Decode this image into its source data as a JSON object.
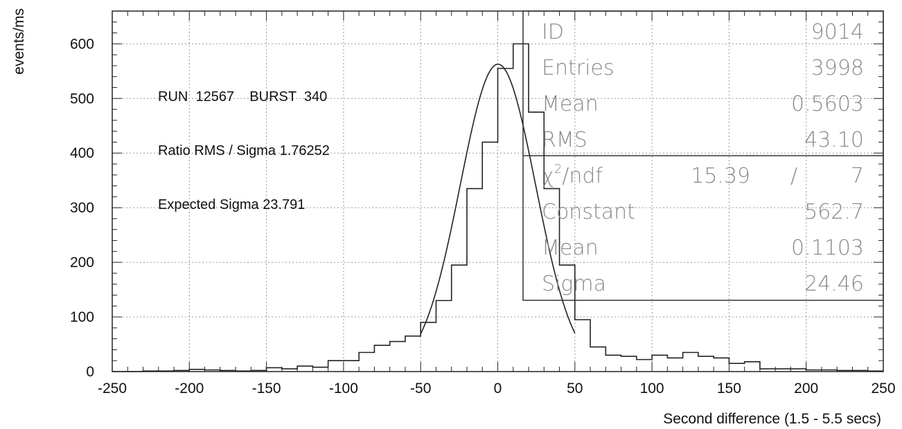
{
  "chart_data": {
    "type": "histogram",
    "title": "",
    "xlabel": "Second difference  (1.5 - 5.5 secs)",
    "ylabel": "events/ms",
    "xlim": [
      -250,
      250
    ],
    "ylim": [
      0,
      660
    ],
    "xticks": [
      -250,
      -200,
      -150,
      -100,
      -50,
      0,
      50,
      100,
      150,
      200,
      250
    ],
    "xtick_labels": [
      "-250",
      "-200",
      "-150",
      "-100",
      "-50",
      "0",
      "50",
      "100",
      "150",
      "200",
      "250"
    ],
    "yticks": [
      0,
      100,
      200,
      300,
      400,
      500,
      600
    ],
    "ytick_labels": [
      "0",
      "100",
      "200",
      "300",
      "400",
      "500",
      "600"
    ],
    "grid": true,
    "bin_width": 10,
    "bin_edges_start": -250,
    "histogram_values": [
      0,
      0,
      1,
      1,
      2,
      4,
      3,
      2,
      1,
      2,
      7,
      5,
      10,
      8,
      20,
      20,
      35,
      48,
      55,
      65,
      90,
      130,
      195,
      335,
      420,
      555,
      600,
      475,
      335,
      195,
      95,
      45,
      30,
      28,
      22,
      30,
      25,
      35,
      28,
      25,
      15,
      18,
      5,
      5,
      5,
      3,
      3,
      2,
      2,
      1
    ],
    "fit_curve": {
      "type": "gaussian",
      "constant": 562.7,
      "mean": 0.1103,
      "sigma": 24.46,
      "x_range": [
        -50,
        50
      ]
    },
    "annotations": [
      "RUN  12567    BURST  340",
      "Ratio RMS / Sigma  1.76252",
      "Expected Sigma  23.791"
    ],
    "stats_box": {
      "rows": [
        {
          "label": "ID",
          "value": "9014"
        },
        {
          "label": "Entries",
          "value": "3998"
        },
        {
          "label": "Mean",
          "value": "0.5603"
        },
        {
          "label": "RMS",
          "value": "43.10"
        }
      ],
      "fit_header": {
        "label_sym": "χ",
        "label_sup": "2",
        "label_rest": "/ndf",
        "chi2": "15.39",
        "slash": "/",
        "ndf": "7"
      },
      "fit_rows": [
        {
          "label": "Constant",
          "value": "562.7"
        },
        {
          "label": "Mean",
          "value": "0.1103"
        },
        {
          "label": "Sigma",
          "value": "24.46"
        }
      ]
    }
  }
}
